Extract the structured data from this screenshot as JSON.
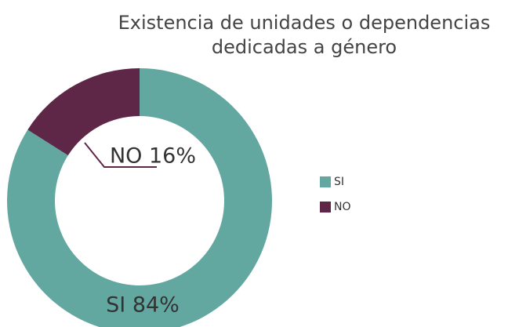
{
  "chart_data": {
    "type": "donut",
    "title": "Existencia de unidades o dependencias dedicadas a género",
    "categories": [
      "SI",
      "NO"
    ],
    "values": [
      84,
      16
    ],
    "value_labels": [
      "SI 84%",
      "NO 16%"
    ],
    "colors": [
      "#62a8a0",
      "#5e2748"
    ],
    "legend": "right"
  }
}
